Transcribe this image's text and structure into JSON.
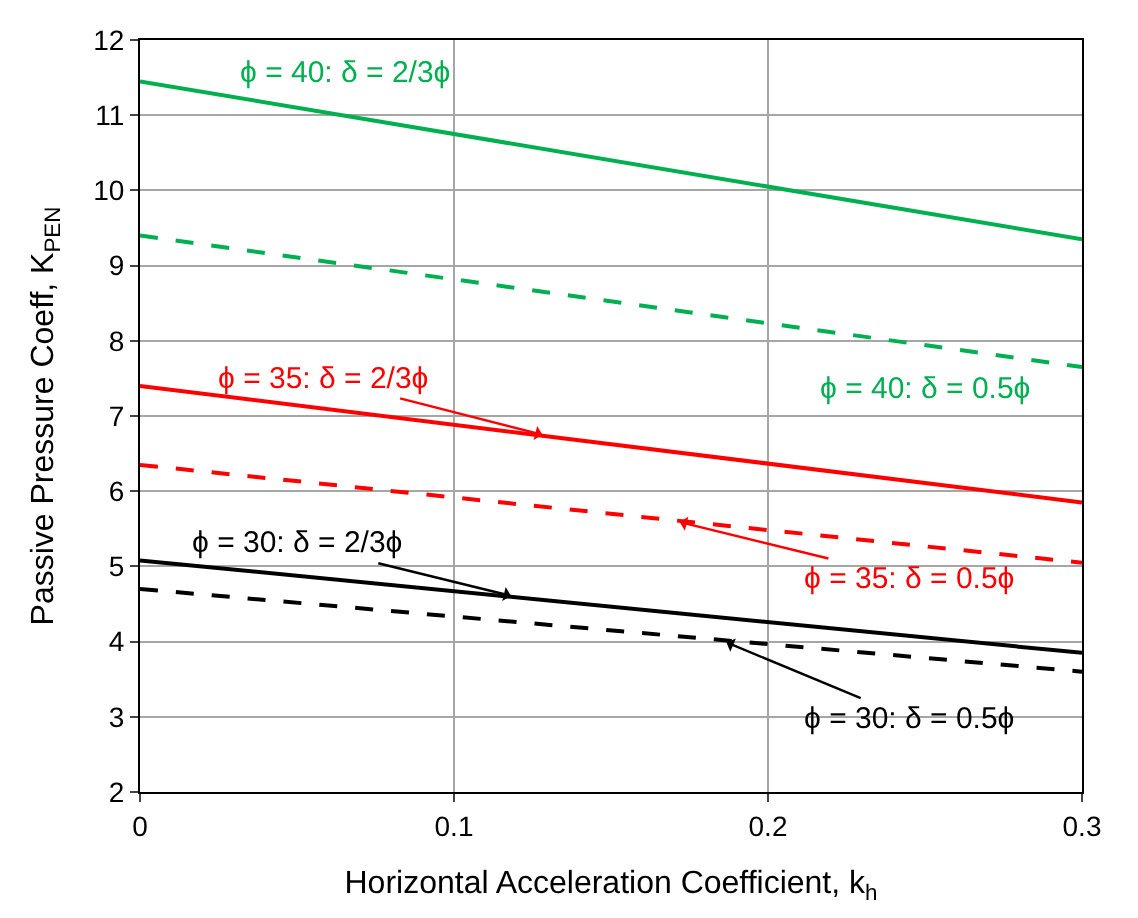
{
  "chart_data": {
    "type": "line",
    "xlabel": "Horizontal Acceleration Coefficient, k$_{h}$",
    "ylabel": "Passive Pressure Coeff, K$_{PEN}$",
    "x": [
      0,
      0.3
    ],
    "series": [
      {
        "color": "#00b050",
        "line_style": "solid",
        "values": [
          11.45,
          9.35
        ]
      },
      {
        "color": "#00b050",
        "line_style": "dashed",
        "values": [
          9.4,
          7.65
        ]
      },
      {
        "color": "#ff0000",
        "line_style": "solid",
        "values": [
          7.4,
          5.85
        ]
      },
      {
        "color": "#ff0000",
        "line_style": "dashed",
        "values": [
          6.35,
          5.05
        ]
      },
      {
        "color": "#000000",
        "line_style": "solid",
        "values": [
          5.08,
          3.85
        ]
      },
      {
        "color": "#000000",
        "line_style": "dashed",
        "values": [
          4.7,
          3.6
        ]
      }
    ],
    "annotations": [
      {
        "text": "ϕ = 40: δ = 2/3ϕ",
        "x": 0.08,
        "y": 10.89
      },
      {
        "text": "ϕ = 40: δ = 0.5ϕ",
        "x": 0.25,
        "y": 7.94
      },
      {
        "text": "ϕ = 35: δ = 2/3ϕ",
        "x": 0.13,
        "y": 6.73
      },
      {
        "text": "ϕ = 35: δ = 0.5ϕ",
        "x": 0.17,
        "y": 5.61
      },
      {
        "text": "ϕ = 30: δ = 2/3ϕ",
        "x": 0.12,
        "y": 4.59
      },
      {
        "text": "ϕ = 30: δ = 0.5ϕ",
        "x": 0.185,
        "y": 4.02
      }
    ],
    "xlim": [
      0,
      0.3
    ],
    "xticks": [
      0,
      0.1,
      0.2,
      0.3
    ],
    "ylim": [
      2,
      12
    ],
    "yticks": [
      2,
      3,
      4,
      5,
      6,
      7,
      8,
      9,
      10,
      11,
      12
    ],
    "grid": true,
    "marker": "none"
  }
}
